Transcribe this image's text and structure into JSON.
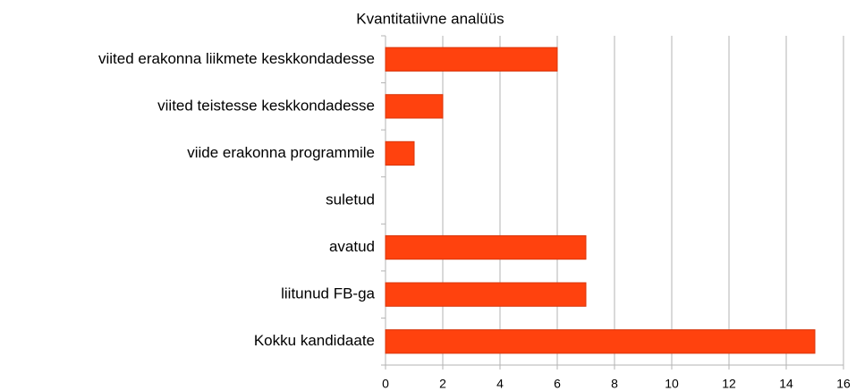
{
  "chart_data": {
    "type": "barh",
    "title": "Kvantitatiivne analüüs",
    "categories": [
      "viited erakonna liikmete keskkondadesse",
      "viited teistesse keskkondadesse",
      "viide erakonna programmile",
      "suletud",
      "avatud",
      "liitunud FB-ga",
      "Kokku kandidaate"
    ],
    "values": [
      6,
      2,
      1,
      0,
      7,
      7,
      15
    ],
    "color": "#ff420e",
    "xlim": [
      0,
      16
    ],
    "xticks": [
      0,
      2,
      4,
      6,
      8,
      10,
      12,
      14,
      16
    ],
    "grid": true
  }
}
